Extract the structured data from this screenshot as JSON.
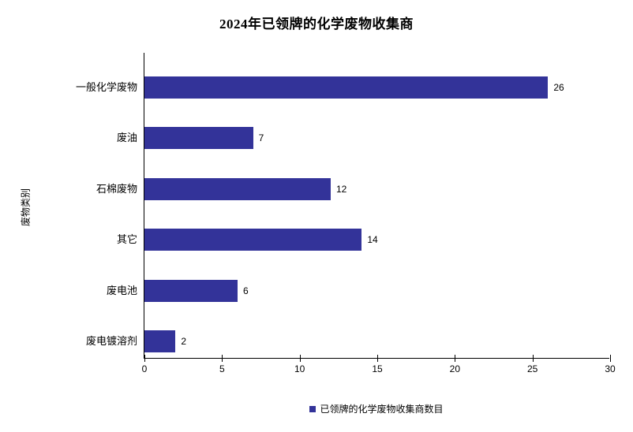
{
  "chart_data": {
    "type": "bar",
    "orientation": "horizontal",
    "title": "2024年已领牌的化学废物收集商",
    "y_axis_title": "废物类别",
    "categories": [
      "一般化学废物",
      "废油",
      "石棉废物",
      "其它",
      "废电池",
      "废电镀溶剂"
    ],
    "values": [
      26,
      7,
      12,
      14,
      6,
      2
    ],
    "series": [
      {
        "name": "已领牌的化学废物收集商数目",
        "values": [
          26,
          7,
          12,
          14,
          6,
          2
        ]
      }
    ],
    "xlim": [
      0,
      30
    ],
    "xticks": [
      0,
      5,
      10,
      15,
      20,
      25,
      30
    ],
    "grid": false,
    "legend_position": "bottom",
    "bar_color": "#333399",
    "axis_color": "#000000",
    "background_color": "#ffffff"
  },
  "legend": {
    "label": "已领牌的化学废物收集商数目"
  }
}
